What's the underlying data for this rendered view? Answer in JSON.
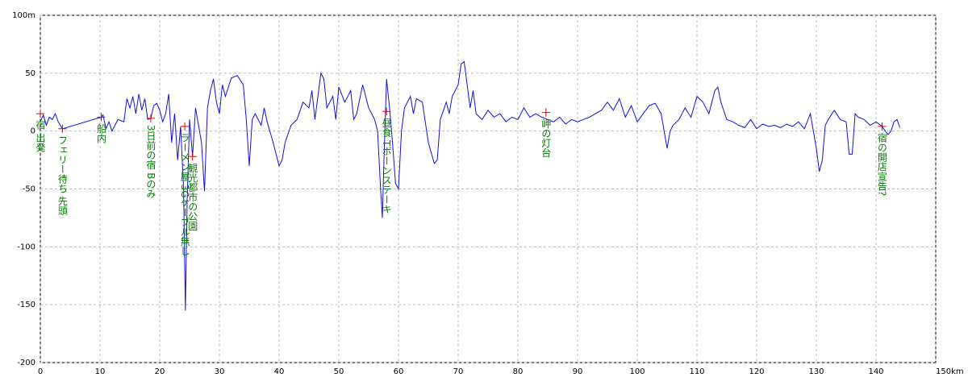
{
  "chart_data": {
    "type": "line",
    "x": [
      0,
      0.5,
      1,
      1.5,
      2,
      2.5,
      3,
      3.7,
      10.2,
      10.5,
      11,
      11.5,
      12,
      13,
      14,
      14.5,
      15,
      15.5,
      16,
      16.5,
      17,
      17.5,
      18,
      18.5,
      19,
      19.5,
      20,
      20.5,
      21,
      21.5,
      22,
      22.5,
      23,
      23.5,
      24,
      24.3,
      24.6,
      25,
      25.5,
      26,
      26.5,
      27,
      27.5,
      28,
      28.5,
      29,
      29.5,
      30,
      30.5,
      31,
      32,
      33,
      34,
      34.5,
      35,
      35.5,
      36,
      37,
      37.5,
      38,
      39,
      40,
      40.5,
      41,
      42,
      43,
      44,
      45,
      45.5,
      46,
      47,
      47.5,
      48,
      49,
      49.5,
      50,
      51,
      52,
      52.5,
      53,
      54,
      55,
      56,
      56.5,
      57,
      57.3,
      57.6,
      58,
      58.5,
      59,
      59.5,
      60,
      60.5,
      61,
      62,
      62.5,
      63,
      64,
      65,
      66,
      66.5,
      67,
      68,
      68.5,
      69,
      70,
      70.5,
      71,
      71.5,
      72,
      72.5,
      73,
      74,
      75,
      76,
      77,
      78,
      79,
      80,
      81,
      82,
      83,
      84,
      85,
      86,
      87,
      88,
      89,
      90,
      91,
      92,
      93,
      94,
      95,
      96,
      97,
      98,
      99,
      100,
      101,
      102,
      103,
      104,
      104.5,
      105,
      105.5,
      106,
      107,
      108,
      109,
      110,
      111,
      112,
      113,
      113.5,
      114,
      115,
      116,
      117,
      118,
      119,
      120,
      121,
      122,
      123,
      124,
      125,
      126,
      127,
      128,
      129,
      129.5,
      130,
      130.5,
      131,
      131.5,
      132,
      133,
      134,
      135,
      135.5,
      136,
      136.5,
      137,
      138,
      139,
      140,
      141,
      142,
      142.5,
      143,
      143.5,
      144
    ],
    "values": [
      8,
      14,
      5,
      12,
      10,
      15,
      8,
      2,
      12,
      14,
      2,
      8,
      0,
      10,
      8,
      28,
      20,
      30,
      15,
      32,
      18,
      28,
      10,
      11,
      22,
      24,
      18,
      8,
      15,
      32,
      -10,
      15,
      -25,
      4,
      -50,
      -155,
      -60,
      10,
      -22,
      20,
      5,
      -10,
      -52,
      20,
      35,
      45,
      25,
      15,
      40,
      30,
      46,
      48,
      40,
      10,
      -30,
      10,
      15,
      5,
      20,
      8,
      -10,
      -30,
      -25,
      -10,
      5,
      10,
      25,
      20,
      35,
      10,
      50,
      45,
      20,
      30,
      10,
      38,
      25,
      35,
      10,
      15,
      40,
      20,
      10,
      0,
      -50,
      -75,
      -20,
      45,
      20,
      -10,
      -45,
      -50,
      0,
      20,
      30,
      15,
      28,
      25,
      -10,
      -28,
      -25,
      10,
      25,
      15,
      30,
      40,
      58,
      60,
      40,
      20,
      35,
      15,
      10,
      18,
      12,
      15,
      8,
      12,
      10,
      20,
      12,
      15,
      12,
      10,
      8,
      12,
      6,
      10,
      8,
      10,
      12,
      15,
      18,
      25,
      18,
      28,
      12,
      22,
      8,
      15,
      22,
      24,
      15,
      0,
      -15,
      0,
      5,
      10,
      20,
      12,
      30,
      25,
      15,
      35,
      38,
      25,
      10,
      8,
      5,
      3,
      10,
      2,
      6,
      4,
      5,
      3,
      6,
      4,
      8,
      2,
      15,
      0,
      -15,
      -35,
      -25,
      5,
      10,
      18,
      10,
      8,
      -20,
      -20,
      15,
      12,
      10,
      5,
      8,
      4,
      -3,
      0,
      8,
      10,
      3
    ],
    "color": "#1010e0",
    "xlim": [
      0,
      150
    ],
    "ylim": [
      -200,
      100
    ],
    "xticks": [
      0,
      10,
      20,
      30,
      40,
      50,
      60,
      70,
      80,
      90,
      100,
      110,
      120,
      130,
      140,
      {
        "value": 150,
        "label": "150km"
      }
    ],
    "yticks": [
      -200,
      -150,
      -100,
      -50,
      0,
      50,
      {
        "value": 100,
        "label": "100m"
      }
    ],
    "grid": true,
    "waypoints": [
      {
        "x": 0,
        "y": 15,
        "label": "宿 出発"
      },
      {
        "x": 3.7,
        "y": 2,
        "label": "フェリー待ち 先頭"
      },
      {
        "x": 10.2,
        "y": 12,
        "label": "船内"
      },
      {
        "x": 18.5,
        "y": 11,
        "label": "3日前の宿 Bのみ"
      },
      {
        "x": 24.2,
        "y": 4,
        "label": "ラーメン屋 3Gケーブル無し"
      },
      {
        "x": 25.5,
        "y": -22,
        "label": "観光都市の公園"
      },
      {
        "x": 58,
        "y": 17,
        "label": "昼食 Tボーンステーキ"
      },
      {
        "x": 84.7,
        "y": 16,
        "label": "岬の灯台"
      },
      {
        "x": 141,
        "y": 4,
        "label": "宿の開店宣告?"
      }
    ]
  }
}
